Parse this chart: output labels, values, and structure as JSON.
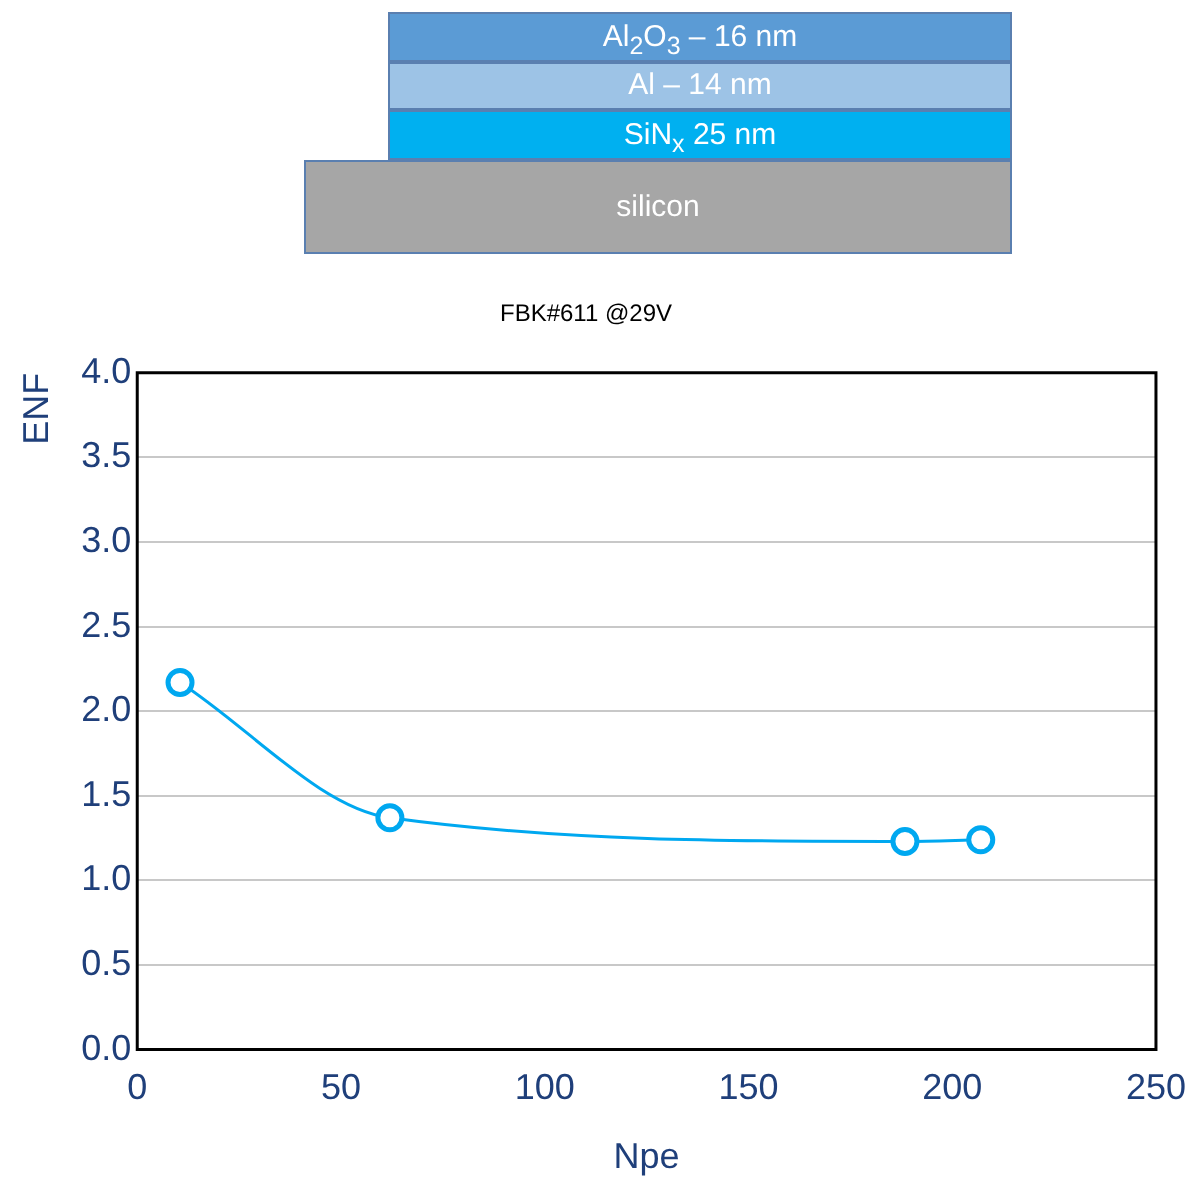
{
  "chart_data": {
    "type": "line",
    "title": "FBK#611 @29V",
    "xlabel": "Npe",
    "ylabel": "ENF",
    "annotations": [
      "Al$_{2}$O$_{3}$ – 16 nm",
      "Al – 14 nm",
      "SiN$_{x}$ 25 nm",
      "silicon"
    ],
    "x": [
      10.5,
      62,
      188.4,
      207
    ],
    "series": [
      {
        "color": "#00a8f0",
        "values": [
          2.17,
          1.37,
          1.23,
          1.24
        ]
      }
    ],
    "xlim": [
      0,
      250
    ],
    "xticks": [
      0,
      50,
      100,
      150,
      200,
      250
    ],
    "ylim": [
      0,
      4
    ],
    "yticks": [
      {
        "value": 0,
        "label": "0.0"
      },
      {
        "value": 0.5,
        "label": "0.5"
      },
      {
        "value": 1,
        "label": "1.0"
      },
      {
        "value": 1.5,
        "label": "1.5"
      },
      {
        "value": 2,
        "label": "2.0"
      },
      {
        "value": 2.5,
        "label": "2.5"
      },
      {
        "value": 3,
        "label": "3.0"
      },
      {
        "value": 3.5,
        "label": "3.5"
      },
      {
        "value": 4,
        "label": "4.0"
      }
    ],
    "grid": "y",
    "legend": false,
    "marker": "circle",
    "line_style": "solid"
  }
}
